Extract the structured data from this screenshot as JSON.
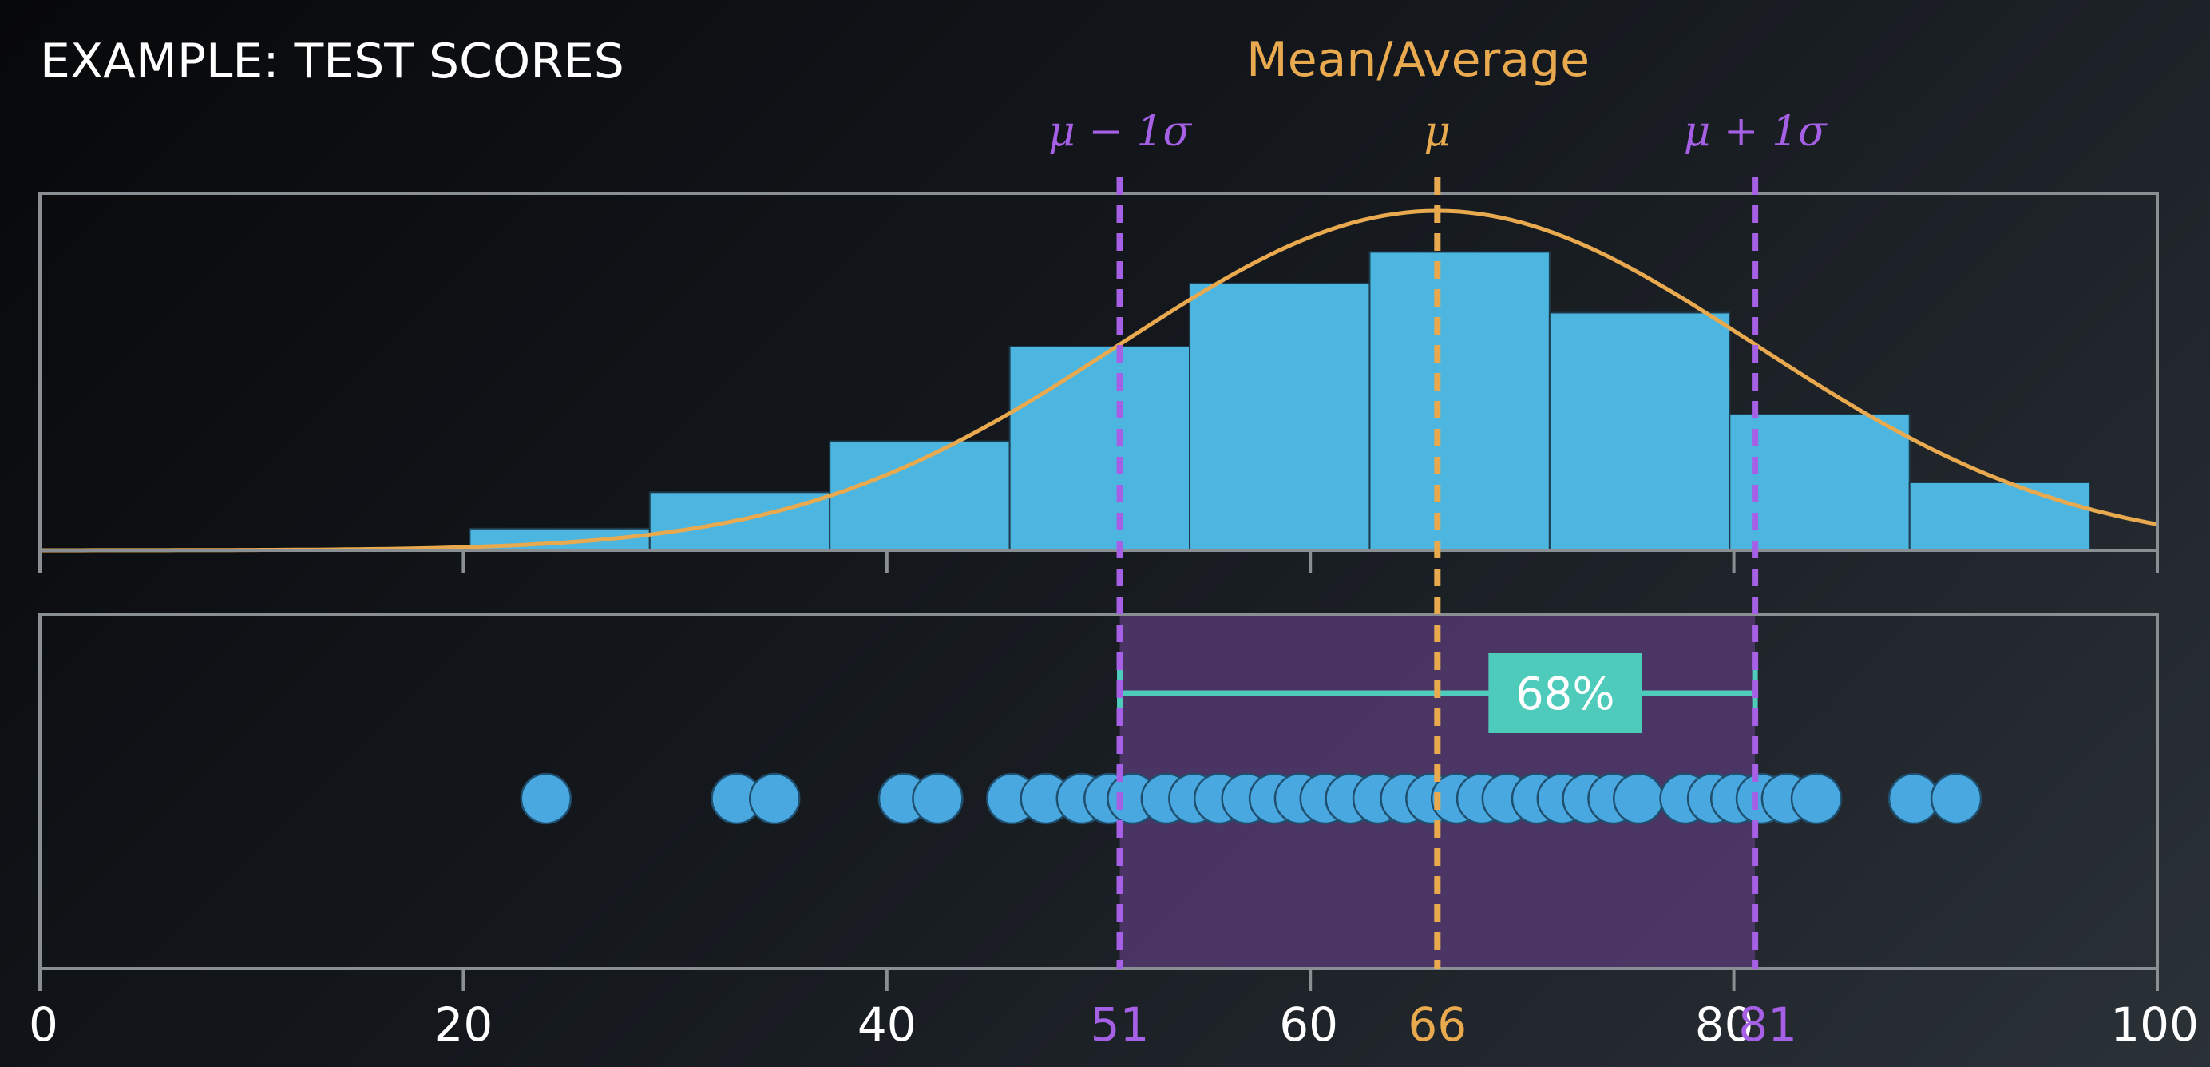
{
  "title": "EXAMPLE: TEST SCORES",
  "mean_label": "Mean/Average",
  "colors": {
    "bar": "#4cb6e0",
    "bar_edge": "#1d3a4c",
    "curve": "#e8a94f",
    "sigma": "#a660e6",
    "band": "#52386e",
    "bracket": "#4ecbbb",
    "dot": "#4aa8e0",
    "frame": "#8a8f94",
    "text": "#ffffff"
  },
  "chart_data": [
    {
      "type": "bar",
      "bins": [
        {
          "start": 20.3,
          "end": 28.8,
          "height": 0.064
        },
        {
          "start": 28.8,
          "end": 37.3,
          "height": 0.171
        },
        {
          "start": 37.3,
          "end": 45.8,
          "height": 0.321
        },
        {
          "start": 45.8,
          "end": 54.3,
          "height": 0.6
        },
        {
          "start": 54.3,
          "end": 62.8,
          "height": 0.786
        },
        {
          "start": 62.8,
          "end": 71.3,
          "height": 0.879
        },
        {
          "start": 71.3,
          "end": 79.8,
          "height": 0.7
        },
        {
          "start": 79.8,
          "end": 88.3,
          "height": 0.4
        },
        {
          "start": 88.3,
          "end": 96.8,
          "height": 0.2
        }
      ],
      "curve": {
        "mean": 66,
        "sd": 15
      },
      "xlim": [
        0,
        100
      ],
      "ticks": [
        0,
        20,
        40,
        60,
        80,
        100
      ],
      "mean": 66,
      "sigma_lines": [
        51,
        81
      ],
      "line_labels": {
        "mean": "μ",
        "minus": "μ − 1σ",
        "plus": "μ + 1σ"
      }
    },
    {
      "type": "scatter",
      "xlim": [
        0,
        100
      ],
      "x": [
        23.9,
        32.9,
        34.7,
        40.8,
        42.4,
        45.9,
        47.5,
        49.2,
        50.5,
        51.6,
        53.2,
        54.5,
        55.7,
        57.0,
        58.3,
        59.5,
        60.7,
        61.9,
        63.2,
        64.5,
        65.7,
        66.9,
        68.1,
        69.3,
        70.7,
        71.9,
        73.1,
        74.3,
        75.5,
        77.7,
        79.0,
        80.1,
        81.3,
        82.5,
        83.9,
        88.5,
        90.5
      ],
      "band": [
        51,
        81
      ],
      "percent_label": "68%",
      "tick_labels": [
        {
          "value": 0,
          "label": "0",
          "kind": "plain"
        },
        {
          "value": 20,
          "label": "20",
          "kind": "plain"
        },
        {
          "value": 40,
          "label": "40",
          "kind": "plain"
        },
        {
          "value": 51,
          "label": "51",
          "kind": "sigma"
        },
        {
          "value": 60,
          "label": "60",
          "kind": "plain"
        },
        {
          "value": 66,
          "label": "66",
          "kind": "mean"
        },
        {
          "value": 80,
          "label": "80",
          "kind": "plain"
        },
        {
          "value": 81,
          "label": "81",
          "kind": "sigma"
        },
        {
          "value": 100,
          "label": "100",
          "kind": "plain"
        }
      ]
    }
  ]
}
